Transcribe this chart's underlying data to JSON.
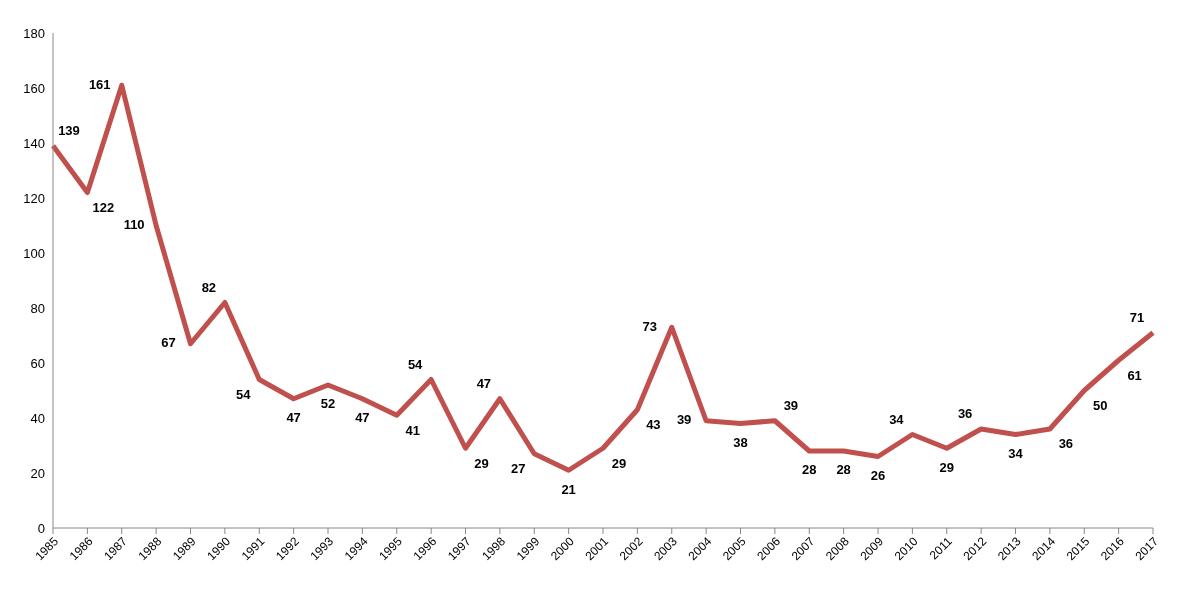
{
  "chart_data": {
    "type": "line",
    "categories": [
      "1985",
      "1986",
      "1987",
      "1988",
      "1989",
      "1990",
      "1991",
      "1992",
      "1993",
      "1994",
      "1995",
      "1996",
      "1997",
      "1998",
      "1999",
      "2000",
      "2001",
      "2002",
      "2003",
      "2004",
      "2005",
      "2006",
      "2007",
      "2008",
      "2009",
      "2010",
      "2011",
      "2012",
      "2013",
      "2014",
      "2015",
      "2016",
      "2017"
    ],
    "series": [
      {
        "color": "#c0504d",
        "values": [
          139,
          122,
          161,
          110,
          67,
          82,
          54,
          47,
          52,
          47,
          41,
          54,
          29,
          47,
          27,
          21,
          29,
          43,
          73,
          39,
          38,
          39,
          28,
          28,
          26,
          34,
          29,
          36,
          34,
          36,
          50,
          61,
          71
        ]
      }
    ],
    "ylim": [
      0,
      180
    ],
    "yticks": [
      0,
      20,
      40,
      60,
      80,
      100,
      120,
      140,
      160,
      180
    ],
    "data_labels": true,
    "marker": "none",
    "grid": false
  }
}
